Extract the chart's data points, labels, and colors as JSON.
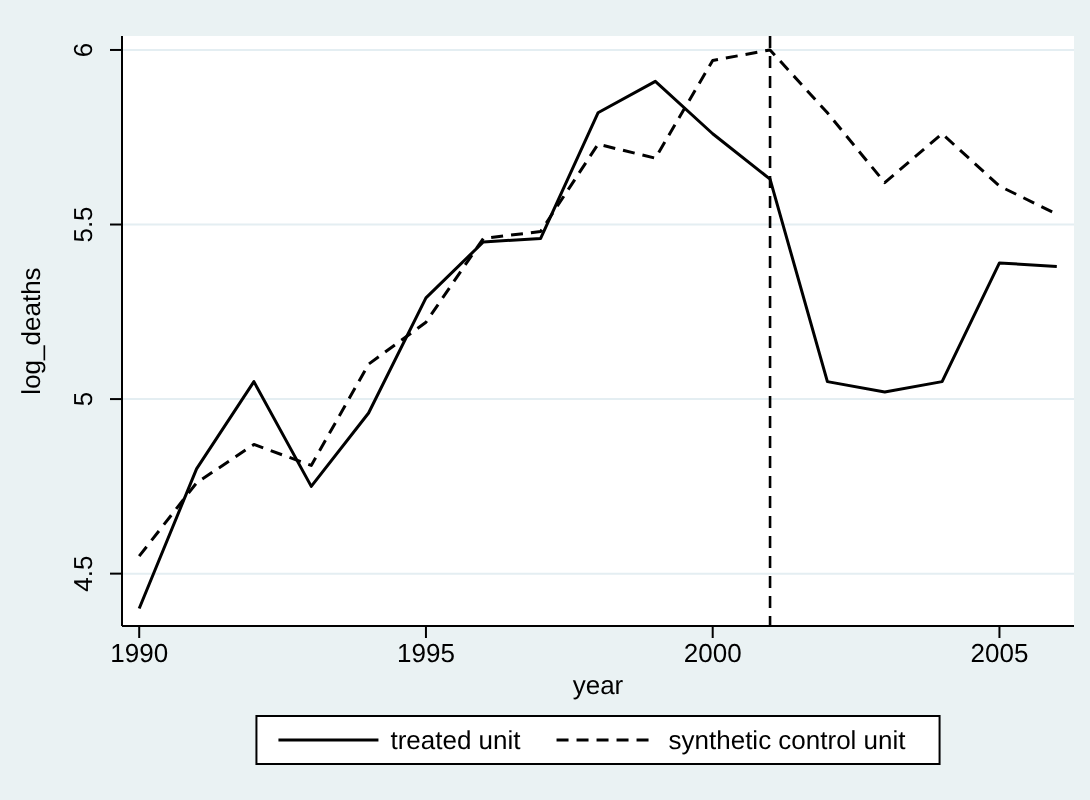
{
  "chart_data": {
    "type": "line",
    "xlabel": "year",
    "ylabel": "log_deaths",
    "x": [
      1990,
      1991,
      1992,
      1993,
      1994,
      1995,
      1996,
      1997,
      1998,
      1999,
      2000,
      2001,
      2002,
      2003,
      2004,
      2005,
      2006
    ],
    "series": [
      {
        "name": "treated unit",
        "color": "#000000",
        "line_style": "solid",
        "values": [
          4.4,
          4.8,
          5.05,
          4.75,
          4.96,
          5.29,
          5.45,
          5.46,
          5.82,
          5.91,
          5.76,
          5.63,
          5.05,
          5.02,
          5.05,
          5.39,
          5.38
        ]
      },
      {
        "name": "synthetic control unit",
        "color": "#000000",
        "line_style": "dashed",
        "values": [
          4.55,
          4.76,
          4.87,
          4.81,
          5.1,
          5.22,
          5.46,
          5.48,
          5.73,
          5.69,
          5.97,
          6.0,
          5.82,
          5.62,
          5.76,
          5.61,
          5.53
        ]
      }
    ],
    "xlim": [
      1989.7,
      2006.3
    ],
    "xticks": [
      1990,
      1995,
      2000,
      2005
    ],
    "ylim": [
      4.35,
      6.04
    ],
    "yticks": [
      4.5,
      5,
      5.5,
      6
    ],
    "grid": "y",
    "legend": "bottom",
    "marker": "none",
    "ref_lines": [
      {
        "axis": "x",
        "value": 2001,
        "color": "#000000",
        "line_style": "dashed"
      }
    ]
  }
}
